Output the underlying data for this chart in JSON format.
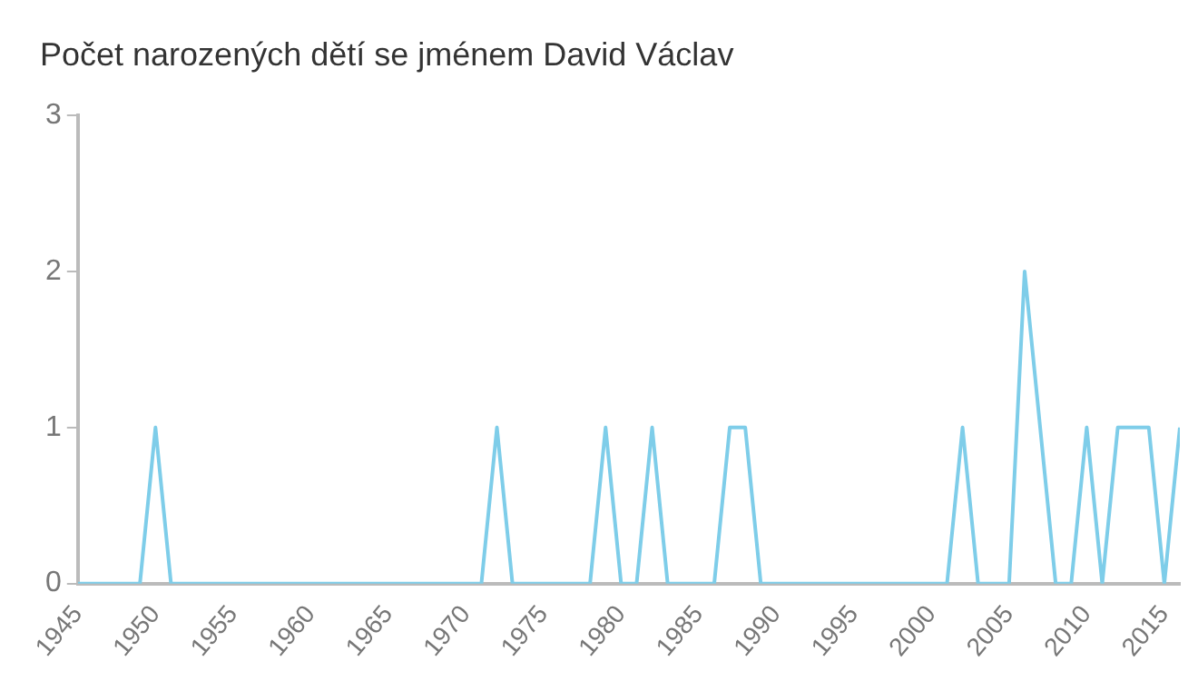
{
  "chart_data": {
    "type": "line",
    "title": "Počet narozených dětí se jménem David Václav",
    "x": [
      1945,
      1946,
      1947,
      1948,
      1949,
      1950,
      1951,
      1952,
      1953,
      1954,
      1955,
      1956,
      1957,
      1958,
      1959,
      1960,
      1961,
      1962,
      1963,
      1964,
      1965,
      1966,
      1967,
      1968,
      1969,
      1970,
      1971,
      1972,
      1973,
      1974,
      1975,
      1976,
      1977,
      1978,
      1979,
      1980,
      1981,
      1982,
      1983,
      1984,
      1985,
      1986,
      1987,
      1988,
      1989,
      1990,
      1991,
      1992,
      1993,
      1994,
      1995,
      1996,
      1997,
      1998,
      1999,
      2000,
      2001,
      2002,
      2003,
      2004,
      2005,
      2006,
      2007,
      2008,
      2009,
      2010,
      2011,
      2012,
      2013,
      2014,
      2015,
      2016
    ],
    "series": [
      {
        "color": "#7ecde9",
        "values": [
          0,
          0,
          0,
          0,
          0,
          1,
          0,
          0,
          0,
          0,
          0,
          0,
          0,
          0,
          0,
          0,
          0,
          0,
          0,
          0,
          0,
          0,
          0,
          0,
          0,
          0,
          0,
          1,
          0,
          0,
          0,
          0,
          0,
          0,
          1,
          0,
          0,
          1,
          0,
          0,
          0,
          0,
          1,
          1,
          0,
          0,
          0,
          0,
          0,
          0,
          0,
          0,
          0,
          0,
          0,
          0,
          0,
          1,
          0,
          0,
          0,
          2,
          1,
          0,
          0,
          1,
          0,
          1,
          1,
          1,
          0,
          1
        ]
      }
    ],
    "xlim": [
      1945,
      2016
    ],
    "xticks": [
      1945,
      1950,
      1955,
      1960,
      1965,
      1970,
      1975,
      1980,
      1985,
      1990,
      1995,
      2000,
      2005,
      2010,
      2015
    ],
    "ylim": [
      0,
      3
    ],
    "yticks": [
      0,
      1,
      2,
      3
    ],
    "grid": false,
    "legend": false,
    "marker": "none",
    "line_style": "solid"
  }
}
